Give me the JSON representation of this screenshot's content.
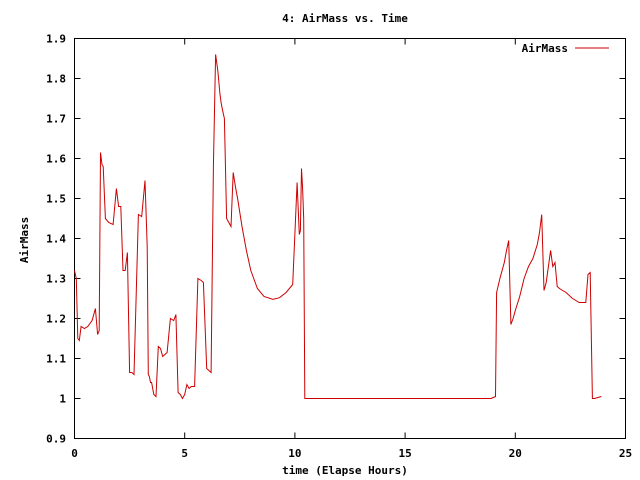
{
  "chart_data": {
    "type": "line",
    "title": "4: AirMass vs. Time",
    "xlabel": "time (Elapse Hours)",
    "ylabel": "AirMass",
    "xlim": [
      0,
      25
    ],
    "ylim": [
      0.9,
      1.9
    ],
    "xticks": [
      "0",
      "5",
      "10",
      "15",
      "20",
      "25"
    ],
    "yticks": [
      "0.9",
      "1",
      "1.1",
      "1.2",
      "1.3",
      "1.4",
      "1.5",
      "1.6",
      "1.7",
      "1.8",
      "1.9"
    ],
    "grid": false,
    "legend_position": "top-right",
    "series": [
      {
        "name": "AirMass",
        "color": "#cc0000",
        "x": [
          0.0,
          0.08,
          0.15,
          0.22,
          0.3,
          0.45,
          0.6,
          0.8,
          0.95,
          1.05,
          1.12,
          1.18,
          1.25,
          1.3,
          1.4,
          1.55,
          1.75,
          1.9,
          2.0,
          2.1,
          2.2,
          2.3,
          2.4,
          2.5,
          2.6,
          2.7,
          2.9,
          3.05,
          3.2,
          3.3,
          3.35,
          3.4,
          3.45,
          3.5,
          3.6,
          3.7,
          3.8,
          3.9,
          4.0,
          4.1,
          4.2,
          4.35,
          4.5,
          4.6,
          4.7,
          4.8,
          4.9,
          5.0,
          5.1,
          5.2,
          5.3,
          5.45,
          5.6,
          5.75,
          5.85,
          6.0,
          6.1,
          6.2,
          6.3,
          6.4,
          6.5,
          6.6,
          6.65,
          6.72,
          6.8,
          6.9,
          7.0,
          7.1,
          7.2,
          7.3,
          7.4,
          7.6,
          7.8,
          8.0,
          8.3,
          8.6,
          9.0,
          9.3,
          9.6,
          9.9,
          10.1,
          10.2,
          10.25,
          10.3,
          10.35,
          10.4,
          10.45,
          10.5,
          10.55,
          10.6,
          10.65,
          10.7,
          10.75,
          11.0,
          12.0,
          13.0,
          14.0,
          15.0,
          16.0,
          17.0,
          18.0,
          18.9,
          19.1,
          19.15,
          19.3,
          19.5,
          19.6,
          19.7,
          19.8,
          19.9,
          20.0,
          20.2,
          20.4,
          20.6,
          20.8,
          21.0,
          21.1,
          21.2,
          21.3,
          21.4,
          21.5,
          21.6,
          21.7,
          21.8,
          21.9,
          22.0,
          22.3,
          22.6,
          22.9,
          23.2,
          23.3,
          23.4,
          23.5,
          23.6,
          23.9
        ],
        "values": [
          1.32,
          1.3,
          1.15,
          1.145,
          1.18,
          1.175,
          1.18,
          1.195,
          1.225,
          1.16,
          1.17,
          1.615,
          1.585,
          1.58,
          1.45,
          1.44,
          1.435,
          1.525,
          1.48,
          1.48,
          1.32,
          1.32,
          1.365,
          1.065,
          1.065,
          1.06,
          1.46,
          1.455,
          1.545,
          1.38,
          1.06,
          1.055,
          1.04,
          1.04,
          1.01,
          1.005,
          1.13,
          1.125,
          1.105,
          1.11,
          1.115,
          1.2,
          1.195,
          1.21,
          1.015,
          1.01,
          1.0,
          1.01,
          1.035,
          1.025,
          1.03,
          1.03,
          1.3,
          1.295,
          1.29,
          1.075,
          1.07,
          1.065,
          1.58,
          1.86,
          1.82,
          1.76,
          1.74,
          1.72,
          1.7,
          1.45,
          1.44,
          1.43,
          1.565,
          1.53,
          1.5,
          1.43,
          1.37,
          1.32,
          1.275,
          1.255,
          1.248,
          1.252,
          1.265,
          1.285,
          1.54,
          1.41,
          1.42,
          1.575,
          1.525,
          1.45,
          1.0,
          1.0,
          1.0,
          1.0,
          1.0,
          1.0,
          1.0,
          1.0,
          1.0,
          1.0,
          1.0,
          1.0,
          1.0,
          1.0,
          1.0,
          1.0,
          1.005,
          1.265,
          1.3,
          1.34,
          1.37,
          1.395,
          1.185,
          1.2,
          1.22,
          1.255,
          1.3,
          1.33,
          1.35,
          1.385,
          1.415,
          1.46,
          1.27,
          1.29,
          1.33,
          1.37,
          1.33,
          1.34,
          1.28,
          1.275,
          1.265,
          1.25,
          1.24,
          1.24,
          1.31,
          1.315,
          1.0,
          1.0,
          1.005
        ]
      }
    ]
  }
}
